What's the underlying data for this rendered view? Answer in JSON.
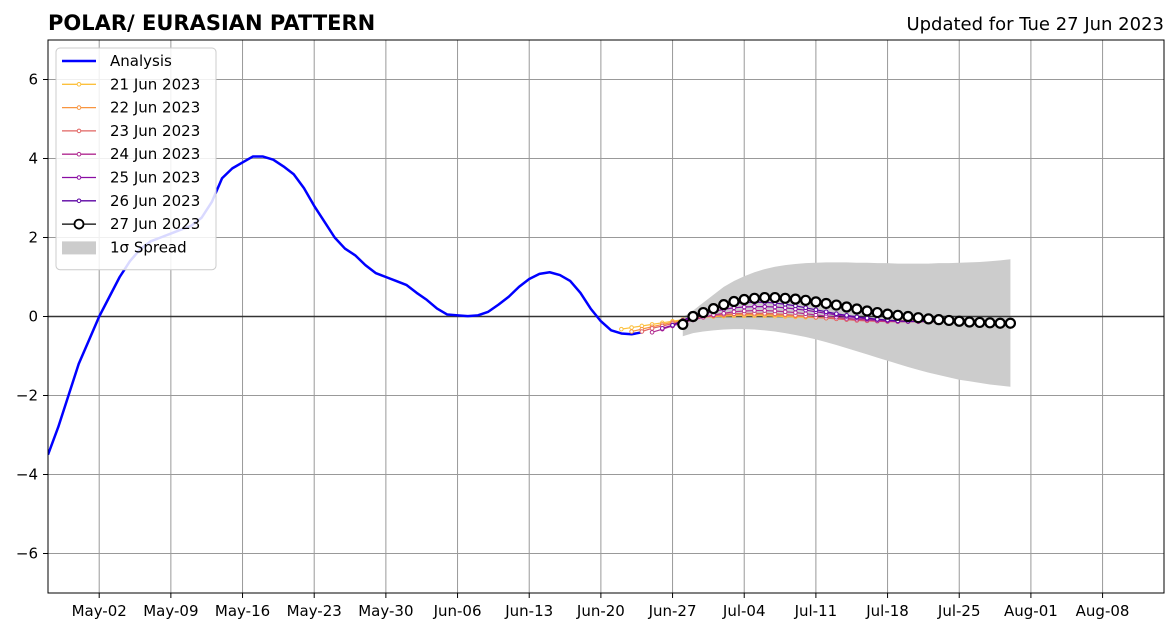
{
  "chart_data": {
    "type": "line",
    "title": "POLAR/ EURASIAN  PATTERN",
    "subtitle": "Updated for Tue 27 Jun 2023",
    "xlabel": "",
    "ylabel": "",
    "x_range": [
      "2023-04-27",
      "2023-08-14"
    ],
    "ylim": [
      -7,
      7
    ],
    "y_ticks": [
      -6,
      -4,
      -2,
      0,
      2,
      4,
      6
    ],
    "y_tick_labels": [
      "−6",
      "−4",
      "−2",
      "0",
      "2",
      "4",
      "6"
    ],
    "x_ticks": [
      "2023-05-02",
      "2023-05-09",
      "2023-05-16",
      "2023-05-23",
      "2023-05-30",
      "2023-06-06",
      "2023-06-13",
      "2023-06-20",
      "2023-06-27",
      "2023-07-04",
      "2023-07-11",
      "2023-07-18",
      "2023-07-25",
      "2023-08-01",
      "2023-08-08"
    ],
    "x_tick_labels": [
      "May-02",
      "May-09",
      "May-16",
      "May-23",
      "May-30",
      "Jun-06",
      "Jun-13",
      "Jun-20",
      "Jun-27",
      "Jul-04",
      "Jul-11",
      "Jul-18",
      "Jul-25",
      "Aug-01",
      "Aug-08"
    ],
    "grid": true,
    "zero_line": true,
    "legend_position": "upper left",
    "series": [
      {
        "name": "Analysis",
        "color": "#0000ff",
        "style": "line",
        "points": [
          [
            "2023-04-27",
            -3.5
          ],
          [
            "2023-04-28",
            -2.8
          ],
          [
            "2023-04-29",
            -2.0
          ],
          [
            "2023-04-30",
            -1.2
          ],
          [
            "2023-05-01",
            -0.6
          ],
          [
            "2023-05-02",
            -0.0
          ],
          [
            "2023-05-03",
            0.5
          ],
          [
            "2023-05-04",
            1.0
          ],
          [
            "2023-05-05",
            1.4
          ],
          [
            "2023-05-06",
            1.7
          ],
          [
            "2023-05-07",
            1.9
          ],
          [
            "2023-05-08",
            2.0
          ],
          [
            "2023-05-09",
            2.1
          ],
          [
            "2023-05-10",
            2.2
          ],
          [
            "2023-05-11",
            2.3
          ],
          [
            "2023-05-12",
            2.5
          ],
          [
            "2023-05-13",
            2.9
          ],
          [
            "2023-05-14",
            3.5
          ],
          [
            "2023-05-15",
            3.75
          ],
          [
            "2023-05-16",
            3.9
          ],
          [
            "2023-05-17",
            4.05
          ],
          [
            "2023-05-18",
            4.05
          ],
          [
            "2023-05-19",
            3.97
          ],
          [
            "2023-05-20",
            3.8
          ],
          [
            "2023-05-21",
            3.6
          ],
          [
            "2023-05-22",
            3.25
          ],
          [
            "2023-05-23",
            2.8
          ],
          [
            "2023-05-24",
            2.4
          ],
          [
            "2023-05-25",
            2.0
          ],
          [
            "2023-05-26",
            1.72
          ],
          [
            "2023-05-27",
            1.55
          ],
          [
            "2023-05-28",
            1.3
          ],
          [
            "2023-05-29",
            1.1
          ],
          [
            "2023-05-30",
            1.0
          ],
          [
            "2023-05-31",
            0.9
          ],
          [
            "2023-06-01",
            0.8
          ],
          [
            "2023-06-02",
            0.6
          ],
          [
            "2023-06-03",
            0.42
          ],
          [
            "2023-06-04",
            0.2
          ],
          [
            "2023-06-05",
            0.05
          ],
          [
            "2023-06-06",
            0.03
          ],
          [
            "2023-06-07",
            0.01
          ],
          [
            "2023-06-08",
            0.03
          ],
          [
            "2023-06-09",
            0.12
          ],
          [
            "2023-06-10",
            0.3
          ],
          [
            "2023-06-11",
            0.5
          ],
          [
            "2023-06-12",
            0.75
          ],
          [
            "2023-06-13",
            0.95
          ],
          [
            "2023-06-14",
            1.08
          ],
          [
            "2023-06-15",
            1.12
          ],
          [
            "2023-06-16",
            1.05
          ],
          [
            "2023-06-17",
            0.9
          ],
          [
            "2023-06-18",
            0.6
          ],
          [
            "2023-06-19",
            0.2
          ],
          [
            "2023-06-20",
            -0.12
          ],
          [
            "2023-06-21",
            -0.35
          ],
          [
            "2023-06-22",
            -0.43
          ],
          [
            "2023-06-23",
            -0.45
          ],
          [
            "2023-06-24",
            -0.4
          ]
        ]
      },
      {
        "name": "21 Jun 2023",
        "color": "#fcc03c",
        "style": "marker-line",
        "start": "2023-06-22",
        "values": [
          -0.32,
          -0.28,
          -0.24,
          -0.2,
          -0.16,
          -0.12,
          -0.08,
          -0.05,
          -0.02,
          0.0,
          0.01,
          0.02,
          0.02,
          0.02,
          0.02,
          0.01,
          0.0,
          -0.01,
          -0.02,
          -0.03,
          -0.04,
          -0.05,
          -0.06,
          -0.07,
          -0.08,
          -0.09,
          -0.1,
          -0.1,
          -0.1,
          -0.1,
          -0.1,
          -0.1
        ]
      },
      {
        "name": "22 Jun 2023",
        "color": "#f89540",
        "style": "marker-line",
        "start": "2023-06-23",
        "values": [
          -0.38,
          -0.32,
          -0.26,
          -0.2,
          -0.15,
          -0.1,
          -0.06,
          -0.02,
          0.01,
          0.03,
          0.05,
          0.05,
          0.05,
          0.05,
          0.04,
          0.03,
          0.01,
          0.0,
          -0.02,
          -0.04,
          -0.05,
          -0.07,
          -0.08,
          -0.09,
          -0.1,
          -0.11,
          -0.12,
          -0.12,
          -0.12,
          -0.12,
          -0.12
        ]
      },
      {
        "name": "23 Jun 2023",
        "color": "#e16462",
        "style": "marker-line",
        "start": "2023-06-24",
        "values": [
          -0.38,
          -0.3,
          -0.24,
          -0.18,
          -0.12,
          -0.07,
          -0.02,
          0.02,
          0.05,
          0.07,
          0.08,
          0.08,
          0.08,
          0.07,
          0.05,
          0.03,
          0.01,
          -0.02,
          -0.04,
          -0.06,
          -0.08,
          -0.1,
          -0.11,
          -0.12,
          -0.13,
          -0.13,
          -0.13,
          -0.13,
          -0.13,
          -0.13
        ]
      },
      {
        "name": "24 Jun 2023",
        "color": "#b12a90",
        "style": "marker-line",
        "start": "2023-06-25",
        "values": [
          -0.4,
          -0.32,
          -0.24,
          -0.16,
          -0.09,
          -0.02,
          0.04,
          0.08,
          0.12,
          0.14,
          0.15,
          0.15,
          0.14,
          0.12,
          0.1,
          0.07,
          0.04,
          0.01,
          -0.02,
          -0.05,
          -0.07,
          -0.09,
          -0.11,
          -0.12,
          -0.13,
          -0.13,
          -0.13,
          -0.13,
          -0.13
        ]
      },
      {
        "name": "25 Jun 2023",
        "color": "#8a0da3",
        "style": "marker-line",
        "start": "2023-06-26",
        "values": [
          -0.3,
          -0.22,
          -0.12,
          -0.03,
          0.06,
          0.13,
          0.18,
          0.22,
          0.24,
          0.25,
          0.25,
          0.24,
          0.22,
          0.19,
          0.16,
          0.12,
          0.08,
          0.04,
          0.0,
          -0.03,
          -0.06,
          -0.08,
          -0.1,
          -0.11,
          -0.12,
          -0.12,
          -0.12,
          -0.12
        ]
      },
      {
        "name": "26 Jun 2023",
        "color": "#5b02a3",
        "style": "marker-line",
        "start": "2023-06-27",
        "values": [
          -0.22,
          -0.1,
          0.02,
          0.12,
          0.2,
          0.27,
          0.32,
          0.35,
          0.36,
          0.36,
          0.34,
          0.31,
          0.27,
          0.22,
          0.17,
          0.12,
          0.07,
          0.03,
          -0.01,
          -0.04,
          -0.07,
          -0.09,
          -0.11,
          -0.12,
          -0.12,
          -0.12,
          -0.12
        ]
      },
      {
        "name": "27 Jun 2023",
        "color": "#000000",
        "style": "open-circle-line",
        "start": "2023-06-28",
        "values": [
          -0.2,
          0.0,
          0.1,
          0.2,
          0.3,
          0.38,
          0.43,
          0.46,
          0.48,
          0.48,
          0.46,
          0.44,
          0.41,
          0.37,
          0.33,
          0.29,
          0.24,
          0.19,
          0.14,
          0.1,
          0.06,
          0.03,
          0.0,
          -0.03,
          -0.06,
          -0.08,
          -0.1,
          -0.12,
          -0.14,
          -0.15,
          -0.16,
          -0.17,
          -0.17
        ]
      }
    ],
    "spread": {
      "name": "1σ Spread",
      "color": "#cccccc",
      "start": "2023-06-28",
      "upper": [
        -0.02,
        0.15,
        0.35,
        0.55,
        0.75,
        0.9,
        1.02,
        1.12,
        1.2,
        1.26,
        1.3,
        1.33,
        1.35,
        1.36,
        1.37,
        1.37,
        1.37,
        1.36,
        1.36,
        1.35,
        1.35,
        1.34,
        1.34,
        1.34,
        1.34,
        1.35,
        1.35,
        1.36,
        1.37,
        1.38,
        1.4,
        1.42,
        1.45
      ],
      "lower": [
        -0.5,
        -0.42,
        -0.38,
        -0.35,
        -0.33,
        -0.32,
        -0.32,
        -0.33,
        -0.35,
        -0.38,
        -0.42,
        -0.47,
        -0.52,
        -0.58,
        -0.65,
        -0.72,
        -0.8,
        -0.88,
        -0.96,
        -1.04,
        -1.12,
        -1.2,
        -1.28,
        -1.35,
        -1.42,
        -1.48,
        -1.54,
        -1.6,
        -1.64,
        -1.68,
        -1.72,
        -1.75,
        -1.78
      ]
    }
  }
}
